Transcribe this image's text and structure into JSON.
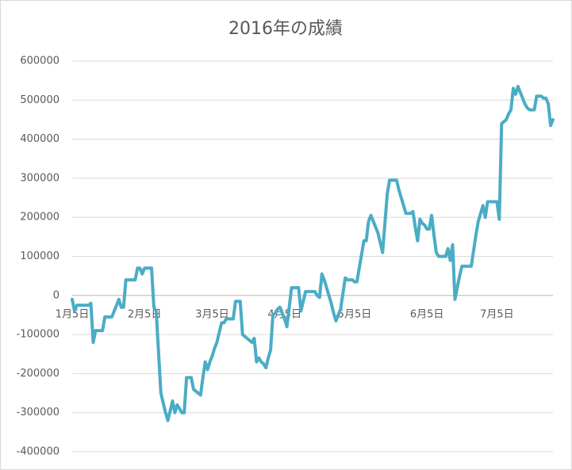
{
  "chart_data": {
    "type": "line",
    "title": "2016年の成績",
    "color": "#4bacc6",
    "grid": true,
    "ylim": [
      -400000,
      600000
    ],
    "yticks": [
      -400000,
      -300000,
      -200000,
      -100000,
      0,
      100000,
      200000,
      300000,
      400000,
      500000,
      600000
    ],
    "categories": [
      "1月5日",
      null,
      null,
      null,
      null,
      null,
      null,
      null,
      null,
      null,
      null,
      null,
      null,
      null,
      null,
      null,
      null,
      null,
      null,
      null,
      null,
      null,
      null,
      null,
      null,
      null,
      null,
      null,
      null,
      null,
      null,
      "2月5日",
      null,
      null,
      null,
      null,
      null,
      null,
      null,
      null,
      null,
      null,
      null,
      null,
      null,
      null,
      null,
      null,
      null,
      null,
      null,
      null,
      null,
      null,
      null,
      null,
      null,
      null,
      null,
      null,
      "3月5日",
      null,
      null,
      null,
      null,
      null,
      null,
      null,
      null,
      null,
      null,
      null,
      null,
      null,
      null,
      null,
      null,
      null,
      null,
      null,
      null,
      null,
      null,
      null,
      null,
      null,
      null,
      null,
      null,
      null,
      null,
      "4月5日",
      null,
      null,
      null,
      null,
      null,
      null,
      null,
      null,
      null,
      null,
      null,
      null,
      null,
      null,
      null,
      null,
      null,
      null,
      null,
      null,
      null,
      null,
      null,
      null,
      null,
      null,
      null,
      null,
      null,
      "5月5日",
      null,
      null,
      null,
      null,
      null,
      null,
      null,
      null,
      null,
      null,
      null,
      null,
      null,
      null,
      null,
      null,
      null,
      null,
      null,
      null,
      null,
      null,
      null,
      null,
      null,
      null,
      null,
      null,
      null,
      null,
      "6月5日",
      null,
      null,
      null,
      null,
      null,
      null,
      null,
      null,
      null,
      null,
      null,
      null,
      null,
      null,
      null,
      null,
      null,
      null,
      null,
      null,
      null,
      null,
      null,
      null,
      null,
      null,
      null,
      null,
      null,
      "7月5日",
      null,
      null,
      null,
      null,
      null,
      null,
      null,
      null,
      null,
      null,
      null,
      null,
      null,
      null,
      null,
      null,
      null,
      null,
      null,
      null,
      null,
      null,
      null,
      null
    ],
    "values": [
      -10000,
      -40000,
      -25000,
      -25000,
      -25000,
      -25000,
      -25000,
      -25000,
      -20000,
      -120000,
      -90000,
      -90000,
      -90000,
      -90000,
      -55000,
      -55000,
      -55000,
      -55000,
      -40000,
      -25000,
      -10000,
      -30000,
      -30000,
      40000,
      40000,
      40000,
      40000,
      40000,
      70000,
      70000,
      55000,
      70000,
      70000,
      70000,
      70000,
      -30000,
      -40000,
      -145000,
      -250000,
      -275000,
      -300000,
      -320000,
      -295000,
      -270000,
      -300000,
      -280000,
      -290000,
      -300000,
      -300000,
      -210000,
      -210000,
      -210000,
      -240000,
      -245000,
      -250000,
      -255000,
      -210000,
      -170000,
      -190000,
      -170000,
      -155000,
      -135000,
      -120000,
      -95000,
      -70000,
      -70000,
      -60000,
      -60000,
      -60000,
      -60000,
      -15000,
      -15000,
      -15000,
      -100000,
      -105000,
      -110000,
      -115000,
      -120000,
      -110000,
      -170000,
      -160000,
      -170000,
      -175000,
      -185000,
      -160000,
      -140000,
      -50000,
      -45000,
      -35000,
      -30000,
      -45000,
      -60000,
      -80000,
      -30000,
      20000,
      20000,
      20000,
      20000,
      -40000,
      -15000,
      10000,
      10000,
      10000,
      10000,
      10000,
      0,
      -5000,
      55000,
      40000,
      20000,
      0,
      -20000,
      -45000,
      -65000,
      -50000,
      -35000,
      5000,
      45000,
      40000,
      40000,
      40000,
      35000,
      35000,
      70000,
      105000,
      140000,
      140000,
      190000,
      205000,
      190000,
      175000,
      160000,
      135000,
      110000,
      185000,
      260000,
      295000,
      295000,
      295000,
      295000,
      270000,
      250000,
      230000,
      210000,
      210000,
      210000,
      215000,
      175000,
      140000,
      195000,
      185000,
      180000,
      170000,
      170000,
      205000,
      155000,
      110000,
      100000,
      100000,
      100000,
      100000,
      120000,
      90000,
      130000,
      -10000,
      20000,
      50000,
      75000,
      75000,
      75000,
      75000,
      75000,
      115000,
      155000,
      190000,
      210000,
      230000,
      200000,
      240000,
      240000,
      240000,
      240000,
      240000,
      195000,
      440000,
      445000,
      450000,
      465000,
      475000,
      530000,
      515000,
      535000,
      520000,
      505000,
      490000,
      480000,
      475000,
      475000,
      475000,
      510000,
      510000,
      510000,
      505000,
      505000,
      490000,
      435000,
      450000
    ]
  }
}
